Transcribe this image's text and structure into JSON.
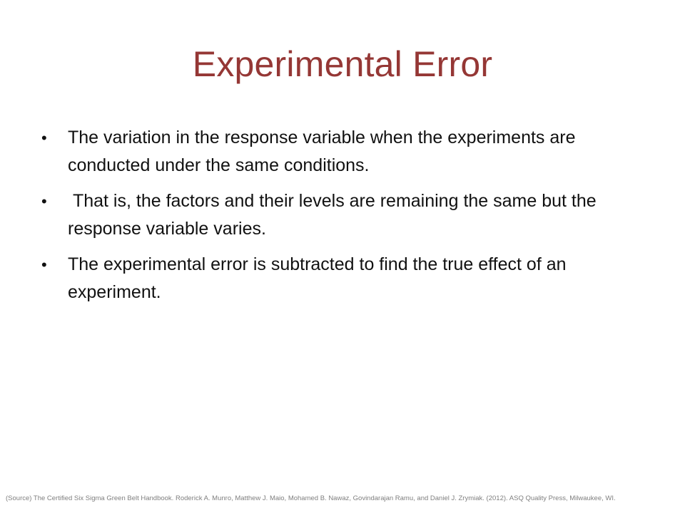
{
  "slide": {
    "title": "Experimental Error",
    "bullet_symbol": "•",
    "bullets": [
      "The variation in the response variable when the experiments are conducted under the same conditions.",
      " That is, the factors and their levels are remaining the same but the response variable varies.",
      "The experimental error is subtracted to find the true effect of an experiment."
    ],
    "source": "(Source) The Certified Six Sigma Green Belt Handbook. Roderick A. Munro, Matthew J. Maio, Mohamed B. Nawaz, Govindarajan Ramu, and Daniel J. Zrymiak. (2012). ASQ Quality Press,  Milwaukee, WI.",
    "colors": {
      "title": "#953735",
      "body_text": "#111111",
      "source_text": "#7f7f7f",
      "background": "#ffffff"
    }
  }
}
